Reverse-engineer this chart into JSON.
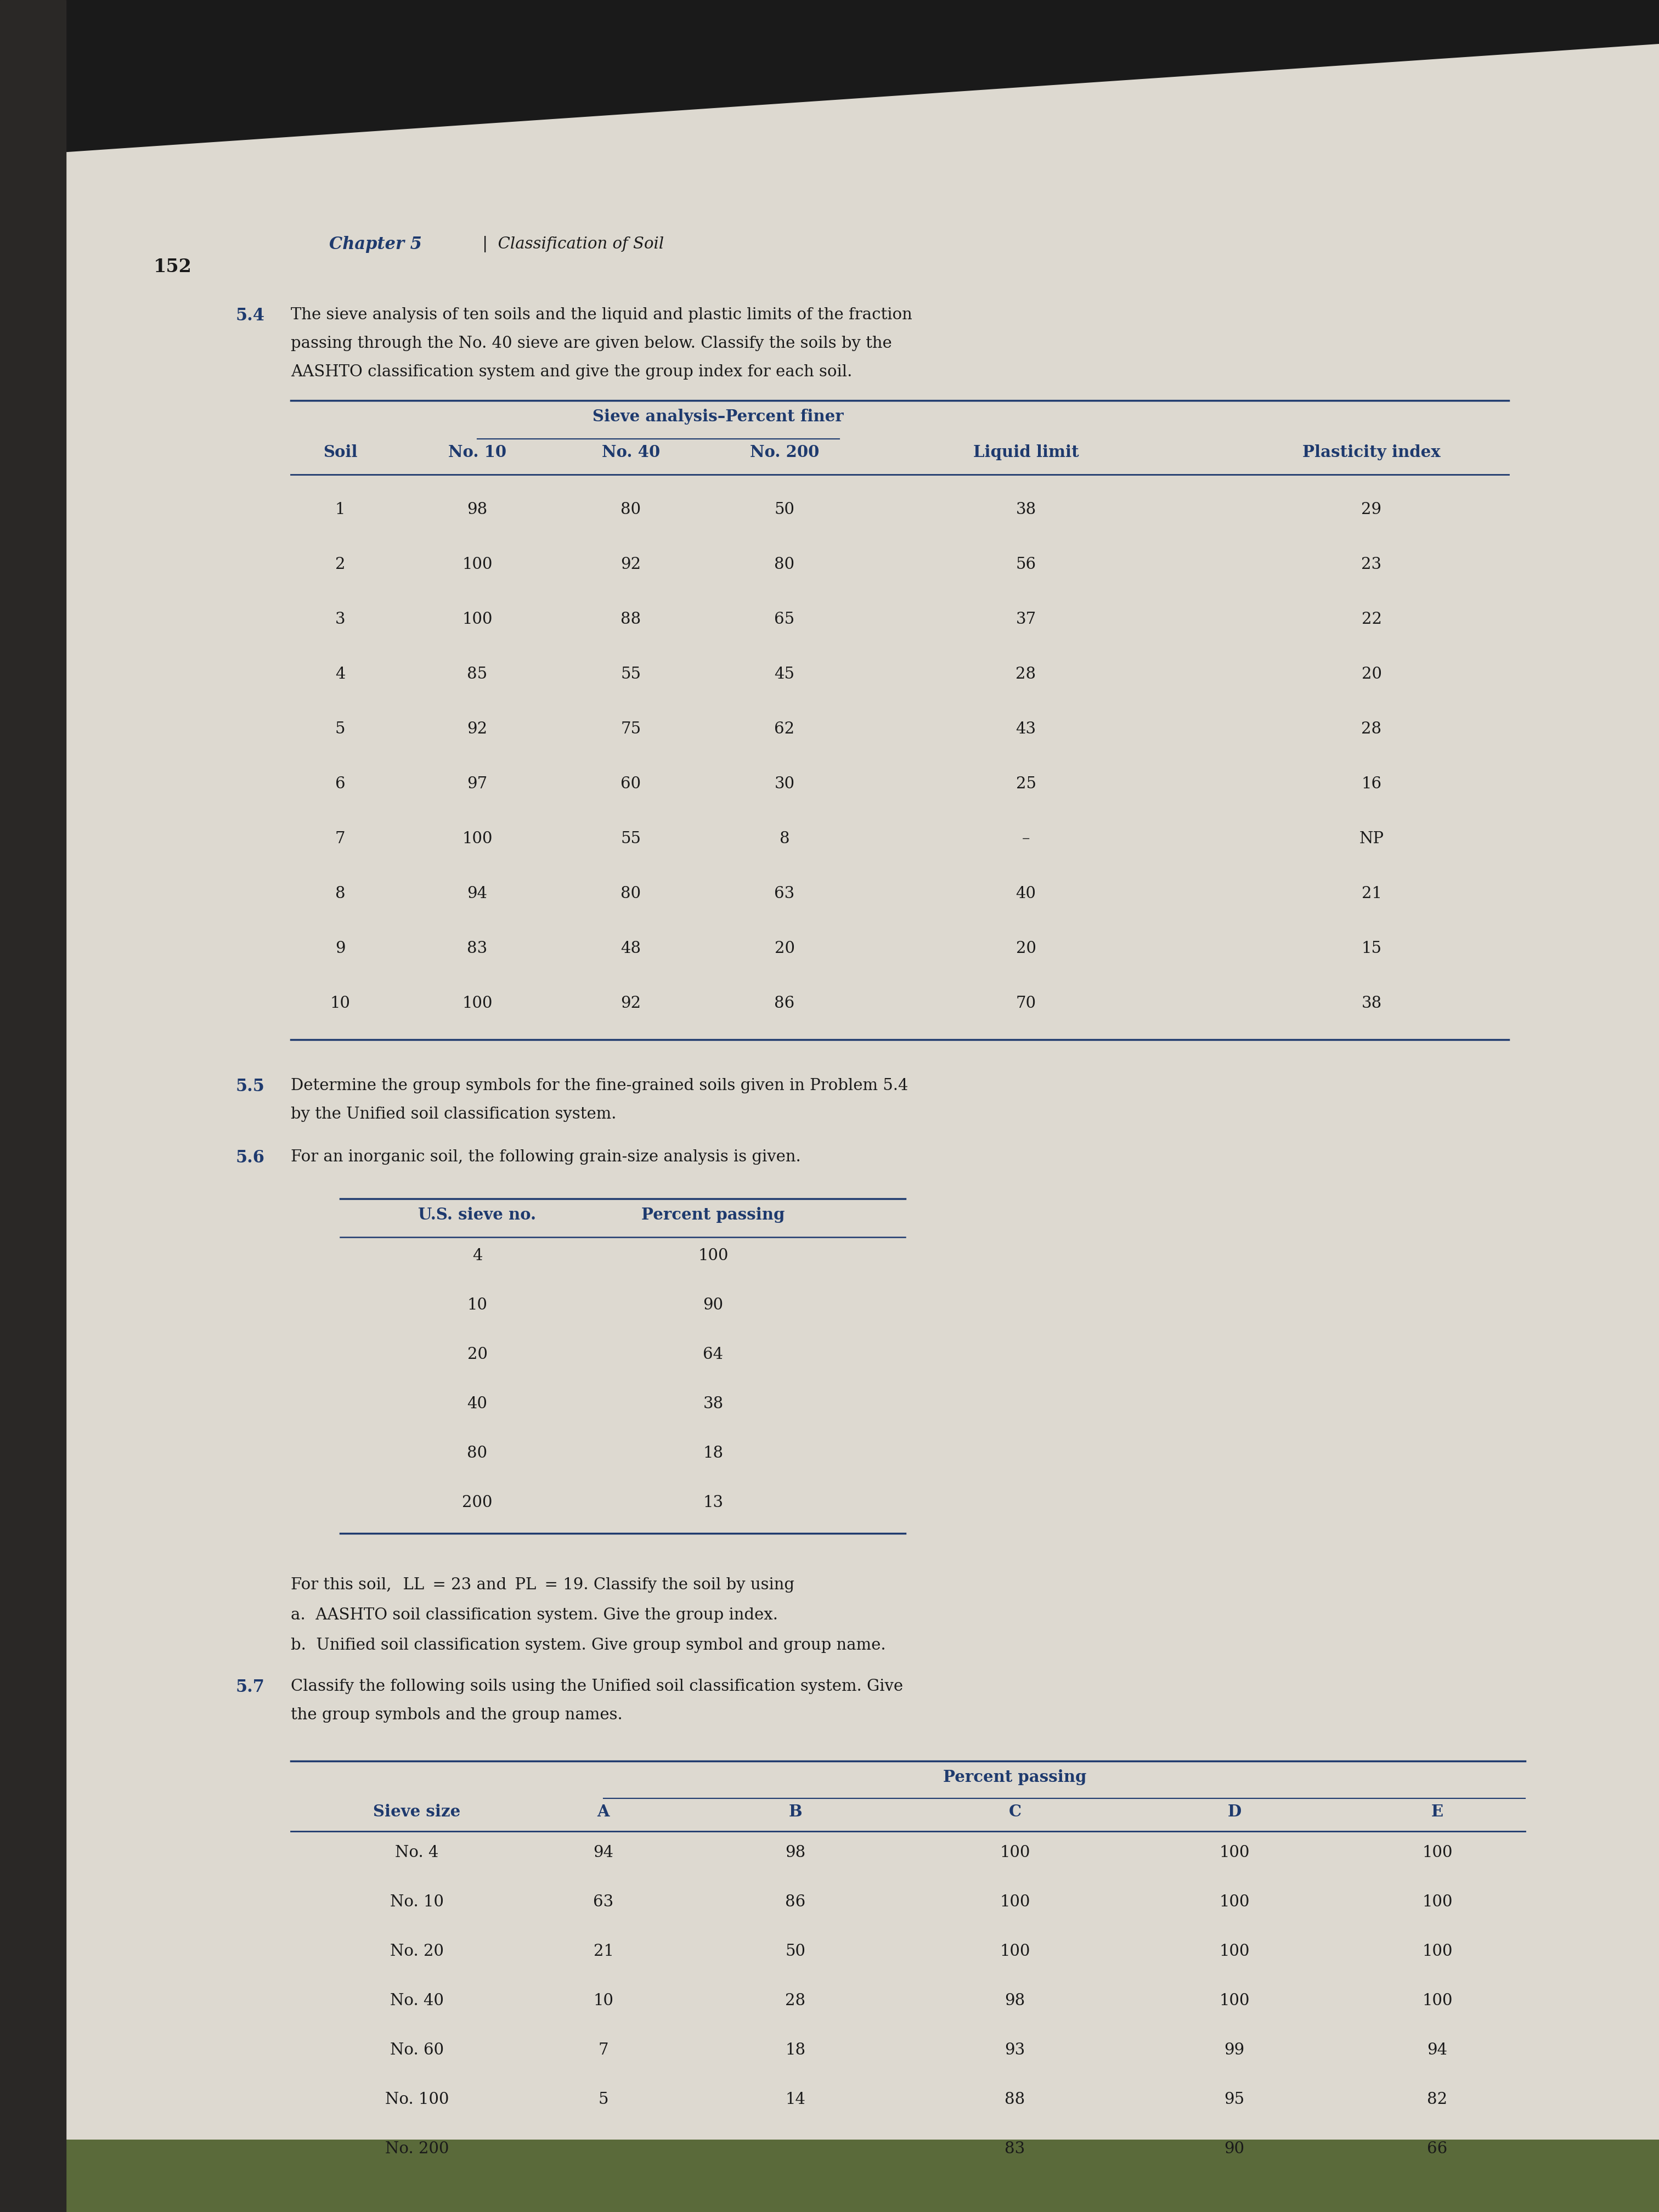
{
  "page_number": "152",
  "chapter_header": "Chapter 5",
  "chapter_subheader": "Classification of Soil",
  "table1_header_group": "Sieve analysis–Percent finer",
  "table1_cols": [
    "Soil",
    "No. 10",
    "No. 40",
    "No. 200",
    "Liquid limit",
    "Plasticity index"
  ],
  "table1_data": [
    [
      "1",
      "98",
      "80",
      "50",
      "38",
      "29"
    ],
    [
      "2",
      "100",
      "92",
      "80",
      "56",
      "23"
    ],
    [
      "3",
      "100",
      "88",
      "65",
      "37",
      "22"
    ],
    [
      "4",
      "85",
      "55",
      "45",
      "28",
      "20"
    ],
    [
      "5",
      "92",
      "75",
      "62",
      "43",
      "28"
    ],
    [
      "6",
      "97",
      "60",
      "30",
      "25",
      "16"
    ],
    [
      "7",
      "100",
      "55",
      "8",
      "–",
      "NP"
    ],
    [
      "8",
      "94",
      "80",
      "63",
      "40",
      "21"
    ],
    [
      "9",
      "83",
      "48",
      "20",
      "20",
      "15"
    ],
    [
      "10",
      "100",
      "92",
      "86",
      "70",
      "38"
    ]
  ],
  "table2_cols": [
    "U.S. sieve no.",
    "Percent passing"
  ],
  "table2_data": [
    [
      "4",
      "100"
    ],
    [
      "10",
      "90"
    ],
    [
      "20",
      "64"
    ],
    [
      "40",
      "38"
    ],
    [
      "80",
      "18"
    ],
    [
      "200",
      "13"
    ]
  ],
  "table3_cols": [
    "Sieve size",
    "A",
    "B",
    "C",
    "D",
    "E"
  ],
  "table3_data": [
    [
      "No. 4",
      "94",
      "98",
      "100",
      "100",
      "100"
    ],
    [
      "No. 10",
      "63",
      "86",
      "100",
      "100",
      "100"
    ],
    [
      "No. 20",
      "21",
      "50",
      "100",
      "100",
      "100"
    ],
    [
      "No. 40",
      "10",
      "28",
      "98",
      "100",
      "100"
    ],
    [
      "No. 60",
      "7",
      "18",
      "93",
      "99",
      "94"
    ],
    [
      "No. 100",
      "5",
      "14",
      "88",
      "95",
      "82"
    ],
    [
      "No. 200",
      "",
      "",
      "83",
      "90",
      "66"
    ]
  ],
  "dark_top_color": "#1a1a1a",
  "page_bg": "#ccc8c0",
  "text_color": "#1a1a1a",
  "blue_color": "#1e3a6e",
  "table_line_color": "#1e3a6e",
  "spine_color": "#2a2a2a"
}
